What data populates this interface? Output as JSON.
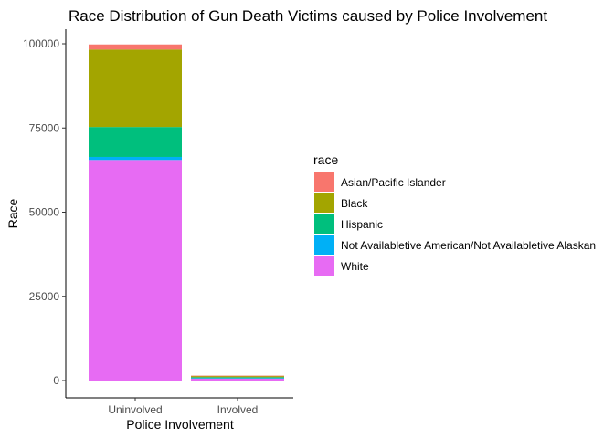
{
  "chart_data": {
    "type": "bar",
    "stacked": true,
    "title": "Race Distribution of Gun Death Victims caused by Police Involvement",
    "xlabel": "Police Involvement",
    "ylabel": "Race",
    "categories": [
      "Uninvolved",
      "Involved"
    ],
    "ylim": [
      0,
      100000
    ],
    "yticks": [
      0,
      25000,
      50000,
      75000,
      100000
    ],
    "legend_title": "race",
    "legend_position": "right",
    "grid": false,
    "series": [
      {
        "name": "White",
        "color": "#E76BF3",
        "values": [
          65500,
          700
        ]
      },
      {
        "name": "Not Availabletive American/Not Availabletive Alaskan",
        "color": "#00B0F6",
        "values": [
          900,
          30
        ]
      },
      {
        "name": "Hispanic",
        "color": "#00BF7D",
        "values": [
          8900,
          280
        ]
      },
      {
        "name": "Black",
        "color": "#A3A500",
        "values": [
          23000,
          400
        ]
      },
      {
        "name": "Asian/Pacific Islander",
        "color": "#F8766D",
        "values": [
          1500,
          30
        ]
      }
    ],
    "legend_order": [
      "Asian/Pacific Islander",
      "Black",
      "Hispanic",
      "Not Availabletive American/Not Availabletive Alaskan",
      "White"
    ]
  }
}
